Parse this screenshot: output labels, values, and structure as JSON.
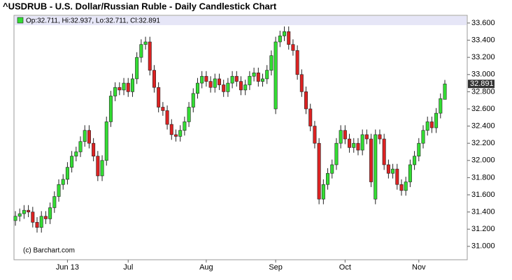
{
  "chart_data": {
    "type": "candlestick",
    "title": "^USDRUB - U.S. Dollar/Russian Ruble - Daily Candlestick Chart",
    "legend_text": "Op:32.711, Hi:32.937, Lo:32.711, Cl:32.891",
    "credit": "(c) Barchart.com",
    "last_value_label": "32.891",
    "up_color": "#33dd33",
    "down_color": "#dd2222",
    "categories": [
      null,
      null,
      null,
      null,
      null,
      null,
      null,
      null,
      null,
      null,
      null,
      null,
      "Jun 13",
      null,
      null,
      null,
      null,
      null,
      null,
      null,
      null,
      null,
      null,
      null,
      null,
      null,
      "Jul",
      null,
      null,
      null,
      null,
      null,
      null,
      null,
      null,
      null,
      null,
      null,
      null,
      null,
      null,
      null,
      null,
      null,
      "Aug",
      null,
      null,
      null,
      null,
      null,
      null,
      null,
      null,
      null,
      null,
      null,
      null,
      null,
      null,
      null,
      "Sep",
      null,
      null,
      null,
      null,
      null,
      null,
      null,
      null,
      null,
      null,
      null,
      null,
      null,
      null,
      null,
      "Oct",
      null,
      null,
      null,
      null,
      null,
      null,
      null,
      null,
      null,
      null,
      null,
      null,
      null,
      null,
      null,
      null,
      "Nov",
      null,
      null,
      null,
      null,
      null,
      null
    ],
    "open": [
      31.3,
      31.35,
      31.38,
      31.42,
      31.4,
      31.28,
      31.22,
      31.35,
      31.32,
      31.45,
      31.58,
      31.72,
      31.78,
      31.92,
      32.05,
      32.1,
      32.22,
      32.35,
      32.2,
      32.05,
      31.82,
      32.0,
      32.45,
      32.75,
      32.85,
      32.82,
      32.9,
      32.8,
      32.95,
      33.2,
      33.35,
      33.38,
      33.05,
      32.85,
      32.62,
      32.58,
      32.42,
      32.3,
      32.28,
      32.35,
      32.45,
      32.62,
      32.78,
      32.9,
      32.98,
      32.92,
      32.85,
      32.95,
      32.88,
      32.8,
      32.9,
      32.98,
      32.92,
      32.82,
      32.88,
      32.98,
      33.02,
      32.92,
      32.95,
      33.05,
      32.6,
      33.38,
      33.45,
      33.5,
      33.35,
      33.28,
      33.0,
      32.8,
      32.6,
      32.4,
      32.2,
      31.55,
      31.72,
      31.85,
      31.95,
      32.2,
      32.35,
      32.25,
      32.15,
      32.2,
      32.12,
      32.3,
      32.25,
      31.55,
      32.3,
      32.25,
      31.95,
      31.85,
      31.9,
      31.72,
      31.65,
      31.75,
      31.95,
      32.05,
      32.2,
      32.35,
      32.45,
      32.38,
      32.55,
      32.711
    ],
    "high": [
      31.41,
      31.44,
      31.48,
      31.48,
      31.46,
      31.34,
      31.41,
      31.41,
      31.51,
      31.64,
      31.78,
      31.84,
      31.98,
      32.11,
      32.16,
      32.28,
      32.41,
      32.41,
      32.26,
      32.11,
      32.06,
      32.51,
      32.81,
      32.91,
      32.91,
      32.96,
      32.96,
      33.01,
      33.26,
      33.41,
      33.44,
      33.44,
      33.11,
      32.91,
      32.68,
      32.64,
      32.48,
      32.36,
      32.41,
      32.51,
      32.68,
      32.84,
      32.96,
      33.04,
      33.04,
      32.98,
      33.01,
      33.01,
      32.94,
      32.96,
      33.04,
      33.04,
      32.98,
      32.94,
      33.04,
      33.08,
      33.08,
      33.01,
      33.11,
      33.28,
      33.44,
      33.51,
      33.56,
      33.56,
      33.41,
      33.34,
      33.06,
      32.86,
      32.66,
      32.46,
      32.26,
      31.78,
      31.91,
      32.01,
      32.26,
      32.41,
      32.41,
      32.31,
      32.26,
      32.26,
      32.36,
      32.36,
      32.31,
      32.36,
      32.36,
      32.31,
      32.01,
      31.96,
      31.96,
      31.78,
      31.81,
      32.01,
      32.11,
      32.26,
      32.41,
      32.51,
      32.51,
      32.61,
      32.78,
      32.937
    ],
    "low": [
      31.24,
      31.29,
      31.32,
      31.34,
      31.22,
      31.16,
      31.16,
      31.26,
      31.26,
      31.39,
      31.52,
      31.66,
      31.72,
      31.86,
      31.99,
      32.04,
      32.16,
      32.14,
      31.99,
      31.76,
      31.76,
      31.94,
      32.39,
      32.69,
      32.76,
      32.76,
      32.74,
      32.74,
      32.89,
      33.14,
      33.29,
      32.99,
      32.79,
      32.56,
      32.52,
      32.36,
      32.24,
      32.22,
      32.22,
      32.29,
      32.39,
      32.56,
      32.72,
      32.84,
      32.86,
      32.79,
      32.79,
      32.82,
      32.74,
      32.74,
      32.84,
      32.86,
      32.76,
      32.76,
      32.82,
      32.92,
      32.86,
      32.86,
      32.89,
      32.99,
      32.54,
      33.32,
      33.39,
      33.29,
      33.22,
      32.94,
      32.74,
      32.54,
      32.34,
      32.14,
      31.49,
      31.49,
      31.66,
      31.79,
      31.89,
      32.14,
      32.19,
      32.09,
      32.09,
      32.06,
      32.06,
      32.19,
      31.69,
      31.49,
      32.19,
      31.89,
      31.79,
      31.79,
      31.66,
      31.59,
      31.59,
      31.69,
      31.89,
      31.99,
      32.14,
      32.29,
      32.32,
      32.32,
      32.49,
      32.711
    ],
    "close": [
      31.35,
      31.38,
      31.42,
      31.4,
      31.28,
      31.22,
      31.35,
      31.32,
      31.45,
      31.58,
      31.72,
      31.78,
      31.92,
      32.05,
      32.1,
      32.22,
      32.35,
      32.2,
      32.05,
      31.82,
      32.0,
      32.45,
      32.75,
      32.85,
      32.82,
      32.9,
      32.8,
      32.95,
      33.2,
      33.35,
      33.38,
      33.05,
      32.85,
      32.62,
      32.58,
      32.42,
      32.3,
      32.28,
      32.35,
      32.45,
      32.62,
      32.78,
      32.9,
      32.98,
      32.92,
      32.85,
      32.95,
      32.88,
      32.8,
      32.9,
      32.98,
      32.92,
      32.82,
      32.88,
      32.98,
      33.02,
      32.92,
      32.95,
      33.05,
      33.22,
      33.38,
      33.45,
      33.5,
      33.35,
      33.28,
      33.0,
      32.8,
      32.6,
      32.4,
      32.2,
      31.55,
      31.72,
      31.85,
      31.95,
      32.2,
      32.35,
      32.25,
      32.15,
      32.2,
      32.12,
      32.3,
      32.25,
      31.75,
      32.3,
      32.25,
      31.95,
      31.85,
      31.9,
      31.72,
      31.65,
      31.75,
      31.95,
      32.05,
      32.2,
      32.35,
      32.45,
      32.38,
      32.55,
      32.72,
      32.891
    ],
    "ylim": [
      30.844,
      33.689
    ],
    "yticks": [
      {
        "value": 31,
        "label": "31.000"
      },
      {
        "value": 31.2,
        "label": "31.200"
      },
      {
        "value": 31.4,
        "label": "31.400"
      },
      {
        "value": 31.6,
        "label": "31.600"
      },
      {
        "value": 31.8,
        "label": "31.800"
      },
      {
        "value": 32,
        "label": "32.000"
      },
      {
        "value": 32.2,
        "label": "32.200"
      },
      {
        "value": 32.4,
        "label": "32.400"
      },
      {
        "value": 32.6,
        "label": "32.600"
      },
      {
        "value": 32.8,
        "label": "32.800"
      },
      {
        "value": 33,
        "label": "33.000"
      },
      {
        "value": 33.2,
        "label": "33.200"
      },
      {
        "value": 33.4,
        "label": "33.400"
      },
      {
        "value": 33.6,
        "label": "33.600"
      }
    ]
  }
}
